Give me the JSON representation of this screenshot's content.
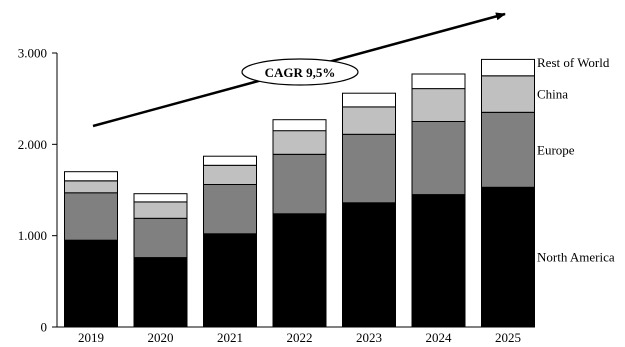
{
  "chart_data": {
    "type": "bar",
    "stacked": true,
    "categories": [
      "2019",
      "2020",
      "2021",
      "2022",
      "2023",
      "2024",
      "2025"
    ],
    "series": [
      {
        "name": "North America",
        "color": "#000000",
        "values": [
          950,
          760,
          1020,
          1240,
          1360,
          1450,
          1530
        ]
      },
      {
        "name": "Europe",
        "color": "#808080",
        "values": [
          520,
          430,
          540,
          650,
          750,
          800,
          820
        ]
      },
      {
        "name": "China",
        "color": "#c0c0c0",
        "values": [
          130,
          180,
          210,
          260,
          300,
          360,
          400
        ]
      },
      {
        "name": "Rest of World",
        "color": "#ffffff",
        "values": [
          100,
          90,
          100,
          120,
          150,
          160,
          180
        ]
      }
    ],
    "ylim": [
      0,
      3000
    ],
    "yticks": [
      0,
      1000,
      2000,
      3000
    ],
    "ytick_labels": [
      "0",
      "1.000",
      "2.000",
      "3.000"
    ],
    "annotation": "CAGR 9,5%",
    "legend_placement": "right"
  }
}
